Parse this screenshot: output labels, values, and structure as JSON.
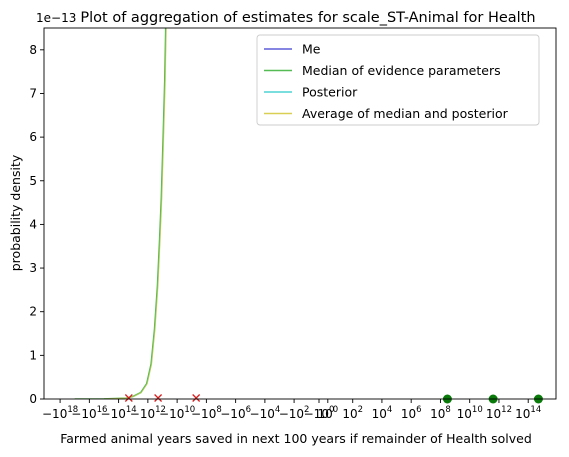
{
  "chart_data": {
    "type": "line",
    "title": "Plot of aggregation of estimates for scale_ST-Animal for Health",
    "xlabel": "Farmed animal years saved in next 100 years if remainder of Health solved",
    "ylabel": "probability density",
    "y_offset_label": "1e−13",
    "x_scale": "symlog",
    "ylim": [
      0,
      8.5
    ],
    "y_ticks": [
      0,
      1,
      2,
      3,
      4,
      5,
      6,
      7,
      8
    ],
    "x_ticks": [
      {
        "exp": 18,
        "label": "−10",
        "sup": "18",
        "neg": true
      },
      {
        "exp": 16,
        "label": "−10",
        "sup": "16",
        "neg": true
      },
      {
        "exp": 14,
        "label": "−10",
        "sup": "14",
        "neg": true
      },
      {
        "exp": 12,
        "label": "−10",
        "sup": "12",
        "neg": true
      },
      {
        "exp": 10,
        "label": "−10",
        "sup": "10",
        "neg": true
      },
      {
        "exp": 8,
        "label": "−10",
        "sup": "8",
        "neg": true
      },
      {
        "exp": 6,
        "label": "−10",
        "sup": "6",
        "neg": true
      },
      {
        "exp": 4,
        "label": "−10",
        "sup": "4",
        "neg": true
      },
      {
        "exp": 2,
        "label": "−10",
        "sup": "2",
        "neg": true
      },
      {
        "exp": 0,
        "label": "−10",
        "sup": "0",
        "neg": true
      },
      {
        "exp": 0,
        "label": "10",
        "sup": "0",
        "neg": false
      },
      {
        "exp": 2,
        "label": "10",
        "sup": "2",
        "neg": false
      },
      {
        "exp": 4,
        "label": "10",
        "sup": "4",
        "neg": false
      },
      {
        "exp": 6,
        "label": "10",
        "sup": "6",
        "neg": false
      },
      {
        "exp": 8,
        "label": "10",
        "sup": "8",
        "neg": false
      },
      {
        "exp": 10,
        "label": "10",
        "sup": "10",
        "neg": false
      },
      {
        "exp": 12,
        "label": "10",
        "sup": "12",
        "neg": false
      },
      {
        "exp": 14,
        "label": "10",
        "sup": "14",
        "neg": false
      }
    ],
    "legend_position": "top-right",
    "series": [
      {
        "name": "Me",
        "color": "#5e5ed9",
        "points": []
      },
      {
        "name": "Median of evidence parameters",
        "color": "#55bb55",
        "points": [
          [
            -1e+17,
            0
          ],
          [
            -1000000000000000.0,
            0.003
          ],
          [
            -30000000000000.0,
            0.02
          ],
          [
            -10000000000000.0,
            0.06
          ],
          [
            -3000000000000.0,
            0.15
          ],
          [
            -1200000000000.0,
            0.35
          ],
          [
            -600000000000.0,
            0.8
          ],
          [
            -350000000000.0,
            1.6
          ],
          [
            -220000000000.0,
            2.6
          ],
          [
            -160000000000.0,
            3.6
          ],
          [
            -120000000000.0,
            4.6
          ],
          [
            -90000000000.0,
            6.0
          ],
          [
            -70000000000.0,
            7.3
          ],
          [
            -60000000000.0,
            8.5
          ]
        ]
      },
      {
        "name": "Posterior",
        "color": "#4ed4d4",
        "points": []
      },
      {
        "name": "Average of median and posterior",
        "color": "#d9cf55",
        "points": []
      }
    ],
    "red_markers": [
      -20000000000000.0,
      -200000000000.0,
      -500000000.0
    ],
    "green_markers": [
      300000000.0,
      400000000000.0,
      500000000000000.0
    ]
  }
}
